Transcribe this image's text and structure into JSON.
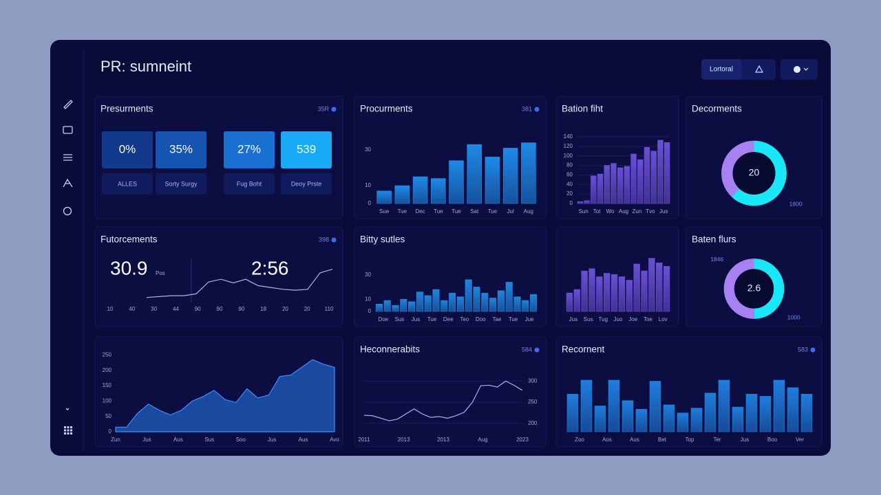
{
  "header": {
    "title": "PR: sumneint",
    "buttons": [
      "Lortoral"
    ]
  },
  "panels": [
    {
      "type": "kpi",
      "title": "Presurments",
      "badge": "35R",
      "tiles": [
        {
          "value": "0%",
          "label": "ALLES",
          "color": "#123a8c"
        },
        {
          "value": "35%",
          "label": "Sorty Surgy",
          "color": "#1654b2"
        },
        {
          "value": "27%",
          "label": "Fug Boht",
          "color": "#1a6fd2"
        },
        {
          "value": "539",
          "label": "Deoy Prste",
          "color": "#19aaf6"
        }
      ]
    },
    {
      "type": "bar",
      "title": "Procurments",
      "badge": "381",
      "color": "#1e8ae8",
      "categories": [
        "Sue",
        "Tue",
        "Dec",
        "Tue",
        "Tue",
        "Sat",
        "Tue",
        "Jul",
        "Aug"
      ],
      "values": [
        7,
        10,
        15,
        14,
        24,
        33,
        26,
        31,
        34
      ],
      "ylim": [
        0,
        40
      ],
      "yticks": [
        0,
        10,
        30
      ]
    },
    {
      "type": "bar",
      "title": "Bation fiht",
      "color": "#6a4fd6",
      "categories": [
        "Sun",
        null,
        "Tot",
        null,
        "Wo",
        null,
        "Aug",
        null,
        "Zun",
        null,
        "Tvo",
        null,
        "Jus",
        null
      ],
      "values": [
        4,
        6,
        58,
        62,
        80,
        84,
        75,
        78,
        104,
        92,
        118,
        110,
        133,
        128
      ],
      "ylim": [
        0,
        150
      ],
      "yticks": [
        0,
        20,
        40,
        60,
        80,
        100,
        120,
        140
      ],
      "grid": true
    },
    {
      "type": "donut",
      "title": "Decorments",
      "center": "20",
      "segments": [
        {
          "color": "#19e6f7",
          "value": 62
        },
        {
          "color": "#a781f2",
          "value": 38
        }
      ],
      "notes": [
        {
          "text": "1800",
          "corner": "bottom-right"
        }
      ]
    },
    {
      "type": "stats",
      "title": "Futorcements",
      "badge": "398",
      "numbers": [
        "30.9",
        "2:56"
      ],
      "unit": "Pos",
      "color": "#aab4e8",
      "values": [
        8,
        10,
        12,
        12,
        16,
        42,
        48,
        40,
        48,
        34,
        30,
        26,
        24,
        26,
        62,
        70
      ],
      "ylim": [
        0,
        80
      ],
      "xlabels": [
        "10",
        "40",
        "30",
        "44",
        "90",
        "90",
        "90",
        "18",
        "20",
        "20",
        "110"
      ]
    },
    {
      "type": "bar",
      "title": "Bitty sutles",
      "color": "#1f86e0",
      "categories": [
        "Doe",
        null,
        "Sus",
        null,
        "Jus",
        null,
        "Tue",
        null,
        "Dee",
        null,
        "Teo",
        null,
        "Doo",
        null,
        "Tae",
        null,
        "Tue",
        null,
        "Jue",
        null
      ],
      "values": [
        6,
        9,
        5,
        10,
        8,
        16,
        13,
        18,
        9,
        15,
        12,
        26,
        20,
        15,
        11,
        17,
        24,
        12,
        9,
        14
      ],
      "ylim": [
        0,
        40
      ],
      "yticks": [
        0,
        10,
        30
      ]
    },
    {
      "type": "bar",
      "color": "#6a4fd6",
      "categories": [
        "Jus",
        null,
        "Sus",
        null,
        "Tug",
        null,
        "Juo",
        null,
        "Joe",
        null,
        "Toe",
        null,
        "Lov",
        null
      ],
      "values": [
        32,
        38,
        70,
        74,
        60,
        66,
        64,
        60,
        54,
        82,
        70,
        92,
        84,
        78
      ],
      "ylim": [
        0,
        120
      ]
    },
    {
      "type": "donut",
      "title": "Baten flurs",
      "center": "2.6",
      "segments": [
        {
          "color": "#19e6f7",
          "value": 50
        },
        {
          "color": "#a781f2",
          "value": 50
        }
      ],
      "notes": [
        {
          "text": "1846",
          "corner": "top-left"
        },
        {
          "text": "1000",
          "corner": "bottom-right"
        }
      ]
    },
    {
      "type": "area",
      "color": "#1f5fc0",
      "values": [
        15,
        15,
        60,
        90,
        70,
        55,
        70,
        100,
        115,
        135,
        105,
        95,
        140,
        110,
        120,
        180,
        185,
        210,
        235,
        220,
        210
      ],
      "ylim": [
        0,
        260
      ],
      "yticks": [
        0,
        50,
        100,
        150,
        200,
        250
      ],
      "xlabels": [
        "Zun",
        "Jus",
        "Aus",
        "Sus",
        "Soo",
        "Jus",
        "Aus",
        "Avo"
      ]
    },
    {
      "type": "line",
      "title": "Heconnerabits",
      "badge": "584",
      "color": "#9aa6e6",
      "y_axis_side": "right",
      "values": [
        219,
        218,
        212,
        206,
        210,
        222,
        234,
        222,
        214,
        216,
        212,
        218,
        226,
        250,
        289,
        290,
        286,
        300,
        290,
        278
      ],
      "ylim": [
        180,
        320
      ],
      "yticks": [
        200,
        250,
        300
      ],
      "grid": true,
      "xlabels": [
        "2011",
        "2013",
        "2013",
        "Aug",
        "2023"
      ]
    },
    {
      "type": "bar",
      "title": "Recornent",
      "badge": "583",
      "color": "#1f7ede",
      "categories": [
        "Zoo",
        null,
        "Aos",
        null,
        "Aus",
        null,
        "Bet",
        null,
        "Top",
        null,
        "Ter",
        null,
        "Jus",
        null,
        "Boo",
        null,
        "Ver",
        null
      ],
      "values": [
        70,
        96,
        48,
        96,
        58,
        42,
        94,
        50,
        35,
        44,
        72,
        96,
        46,
        70,
        66,
        96,
        82,
        70
      ],
      "ylim": [
        0,
        110
      ]
    }
  ]
}
